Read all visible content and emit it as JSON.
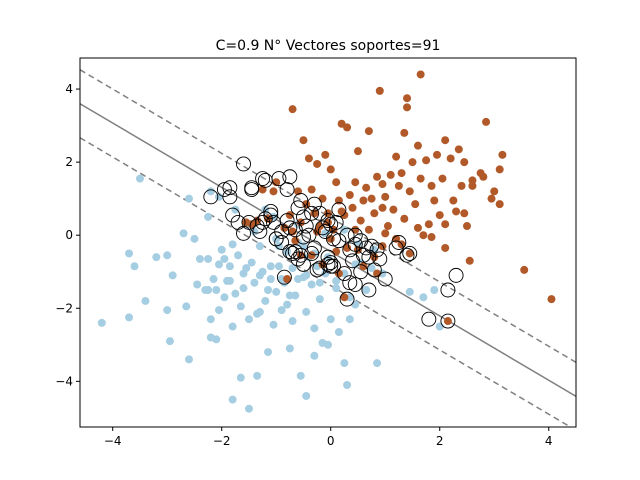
{
  "chart_data": {
    "type": "scatter",
    "title": "C=0.9   N° Vectores soportes=91",
    "xlabel": "",
    "ylabel": "",
    "xlim": [
      -4.6,
      4.5
    ],
    "ylim": [
      -5.25,
      4.85
    ],
    "xticks": [
      -4,
      -2,
      0,
      2,
      4
    ],
    "yticks": [
      -4,
      -2,
      0,
      2,
      4
    ],
    "xtick_labels": [
      "−4",
      "−2",
      "0",
      "2",
      "4"
    ],
    "ytick_labels": [
      "−4",
      "−2",
      "0",
      "2",
      "4"
    ],
    "grid": false,
    "colors": {
      "class0": "#a6cee3",
      "class1": "#b15928",
      "boundary": "#808080",
      "support_ring": "#000000"
    },
    "decision_boundary": {
      "slope": -0.88,
      "intercept": -0.45,
      "margin_offset": 0.93,
      "solid": "decision",
      "dashed": "margins"
    },
    "series": [
      {
        "class": 0,
        "points": [
          [
            -4.2,
            -2.4
          ],
          [
            -3.7,
            -2.25
          ],
          [
            -3.7,
            -0.5
          ],
          [
            -3.6,
            -0.85
          ],
          [
            -3.5,
            1.55
          ],
          [
            -3.4,
            -1.8
          ],
          [
            -3.2,
            -0.6
          ],
          [
            -3.0,
            -0.55
          ],
          [
            -3.0,
            -2.05
          ],
          [
            -2.95,
            -2.9
          ],
          [
            -2.9,
            -1.1
          ],
          [
            -2.7,
            0.05
          ],
          [
            -2.65,
            -1.95
          ],
          [
            -2.6,
            -3.4
          ],
          [
            -2.6,
            1.0
          ],
          [
            -2.5,
            -0.1
          ],
          [
            -2.4,
            -0.65
          ],
          [
            -2.3,
            -1.5
          ],
          [
            -2.25,
            0.5
          ],
          [
            -2.2,
            -2.8
          ],
          [
            -2.15,
            -1.2
          ],
          [
            -2.1,
            -1.5
          ],
          [
            -2.05,
            -0.8
          ],
          [
            -2.0,
            -0.4
          ],
          [
            -1.95,
            -1.7
          ],
          [
            -1.9,
            -1.25
          ],
          [
            -1.85,
            -0.85
          ],
          [
            -1.8,
            -2.5
          ],
          [
            -1.8,
            -0.25
          ],
          [
            -1.75,
            -1.6
          ],
          [
            -1.7,
            -0.55
          ],
          [
            -1.65,
            -3.9
          ],
          [
            -1.6,
            -1.45
          ],
          [
            -1.55,
            -0.9
          ],
          [
            -1.5,
            -2.3
          ],
          [
            -1.45,
            -0.75
          ],
          [
            -1.4,
            -1.3
          ],
          [
            -1.35,
            -3.85
          ],
          [
            -1.3,
            -2.1
          ],
          [
            -1.3,
            -0.3
          ],
          [
            -1.25,
            -1.0
          ],
          [
            -1.2,
            -1.8
          ],
          [
            -1.15,
            -3.2
          ],
          [
            -1.1,
            -0.85
          ],
          [
            -1.05,
            -2.45
          ],
          [
            -1.0,
            -1.55
          ],
          [
            -1.0,
            -0.1
          ],
          [
            -0.95,
            -0.85
          ],
          [
            -0.9,
            -2.05
          ],
          [
            -0.85,
            -1.3
          ],
          [
            -0.8,
            -0.45
          ],
          [
            -0.75,
            -3.1
          ],
          [
            -0.7,
            -2.35
          ],
          [
            -0.7,
            -0.9
          ],
          [
            -0.65,
            -1.65
          ],
          [
            -0.6,
            -0.2
          ],
          [
            -0.55,
            -3.85
          ],
          [
            -0.5,
            -1.15
          ],
          [
            -0.45,
            -2.1
          ],
          [
            -0.45,
            -4.4
          ],
          [
            -0.4,
            -0.6
          ],
          [
            -0.35,
            -1.35
          ],
          [
            -0.3,
            -3.3
          ],
          [
            -0.3,
            -2.55
          ],
          [
            -0.25,
            -0.85
          ],
          [
            -0.2,
            -1.75
          ],
          [
            -0.15,
            -2.95
          ],
          [
            -0.1,
            -1.05
          ],
          [
            -0.05,
            -3.0
          ],
          [
            0.0,
            -2.3
          ],
          [
            0.1,
            -1.45
          ],
          [
            0.15,
            -2.65
          ],
          [
            0.25,
            -3.5
          ],
          [
            0.3,
            -4.1
          ],
          [
            0.35,
            -2.3
          ],
          [
            0.45,
            -1.9
          ],
          [
            0.55,
            -0.75
          ],
          [
            0.65,
            -1.5
          ],
          [
            0.85,
            -3.5
          ],
          [
            -1.8,
            -4.5
          ],
          [
            -1.5,
            -4.75
          ],
          [
            -2.1,
            -2.85
          ],
          [
            -2.25,
            -1.5
          ],
          [
            -2.2,
            -2.3
          ],
          [
            -2.05,
            -2.05
          ],
          [
            -1.65,
            -1.95
          ],
          [
            -1.3,
            -1.1
          ],
          [
            -1.1,
            -1.2
          ],
          [
            -0.9,
            -1.2
          ],
          [
            -0.8,
            -1.9
          ],
          [
            -0.6,
            -1.2
          ],
          [
            -0.95,
            -0.3
          ],
          [
            -1.6,
            -1.05
          ],
          [
            -1.85,
            -1.25
          ],
          [
            -1.95,
            -0.65
          ],
          [
            -2.25,
            -0.65
          ],
          [
            -2.45,
            -1.35
          ],
          [
            -1.35,
            -2.15
          ],
          [
            -1.15,
            -1.5
          ],
          [
            -0.75,
            -1.65
          ],
          [
            -0.45,
            -1.1
          ],
          [
            -0.2,
            -1.3
          ],
          [
            0.1,
            -1.25
          ],
          [
            0.35,
            -1.7
          ],
          [
            0.45,
            -0.8
          ],
          [
            0.75,
            -0.9
          ],
          [
            0.95,
            -1.05
          ],
          [
            1.45,
            -1.55
          ],
          [
            1.7,
            -1.7
          ],
          [
            1.9,
            -1.5
          ],
          [
            2.0,
            -2.5
          ],
          [
            0.25,
            -1.05
          ],
          [
            -0.3,
            -0.5
          ],
          [
            -0.05,
            -0.6
          ],
          [
            -0.6,
            0.3
          ],
          [
            -1.05,
            0.5
          ],
          [
            -1.5,
            0.3
          ],
          [
            -2.05,
            1.05
          ],
          [
            -2.2,
            1.2
          ],
          [
            -1.75,
            0.7
          ],
          [
            -1.4,
            0.1
          ],
          [
            -1.2,
            0.7
          ],
          [
            -0.85,
            0.2
          ],
          [
            -0.5,
            -0.3
          ],
          [
            -0.1,
            0.05
          ],
          [
            0.25,
            0.15
          ],
          [
            0.5,
            -0.25
          ],
          [
            0.8,
            -0.4
          ]
        ]
      },
      {
        "class": 1,
        "points": [
          [
            4.05,
            -1.75
          ],
          [
            3.55,
            -0.95
          ],
          [
            3.1,
            0.85
          ],
          [
            3.1,
            1.8
          ],
          [
            3.15,
            2.2
          ],
          [
            3.0,
            1.2
          ],
          [
            2.85,
            3.1
          ],
          [
            2.8,
            1.6
          ],
          [
            2.75,
            1.7
          ],
          [
            2.6,
            1.35
          ],
          [
            2.6,
            1.5
          ],
          [
            2.55,
            -0.7
          ],
          [
            2.45,
            0.6
          ],
          [
            2.4,
            1.35
          ],
          [
            2.35,
            2.35
          ],
          [
            2.25,
            0.95
          ],
          [
            2.1,
            2.6
          ],
          [
            2.1,
            -0.35
          ],
          [
            2.05,
            1.55
          ],
          [
            2.0,
            0.55
          ],
          [
            1.95,
            2.2
          ],
          [
            1.9,
            0.95
          ],
          [
            1.85,
            1.35
          ],
          [
            1.8,
            0.3
          ],
          [
            1.75,
            2.05
          ],
          [
            1.7,
            0.0
          ],
          [
            1.65,
            1.55
          ],
          [
            1.6,
            2.45
          ],
          [
            1.55,
            0.85
          ],
          [
            1.5,
            2.0
          ],
          [
            1.45,
            1.2
          ],
          [
            1.4,
            3.5
          ],
          [
            1.4,
            3.75
          ],
          [
            1.35,
            2.8
          ],
          [
            1.35,
            0.45
          ],
          [
            1.3,
            1.7
          ],
          [
            1.25,
            1.35
          ],
          [
            1.2,
            2.15
          ],
          [
            1.15,
            0.7
          ],
          [
            1.1,
            1.65
          ],
          [
            1.05,
            0.25
          ],
          [
            1.0,
            1.05
          ],
          [
            0.95,
            1.4
          ],
          [
            0.9,
            3.95
          ],
          [
            0.85,
            1.6
          ],
          [
            0.8,
            0.6
          ],
          [
            0.75,
            1.0
          ],
          [
            0.7,
            2.85
          ],
          [
            0.65,
            1.3
          ],
          [
            0.6,
            0.95
          ],
          [
            0.55,
            0.4
          ],
          [
            0.5,
            2.3
          ],
          [
            0.45,
            1.45
          ],
          [
            0.4,
            0.75
          ],
          [
            0.35,
            1.1
          ],
          [
            0.3,
            2.95
          ],
          [
            0.25,
            0.55
          ],
          [
            0.2,
            3.05
          ],
          [
            0.15,
            0.95
          ],
          [
            0.1,
            1.45
          ],
          [
            0.05,
            0.15
          ],
          [
            0.0,
            1.8
          ],
          [
            -0.05,
            0.6
          ],
          [
            -0.1,
            2.2
          ],
          [
            -0.15,
            1.0
          ],
          [
            -0.2,
            0.25
          ],
          [
            -0.25,
            1.95
          ],
          [
            -0.3,
            0.6
          ],
          [
            -0.35,
            1.25
          ],
          [
            -0.4,
            2.1
          ],
          [
            -0.45,
            0.85
          ],
          [
            -0.5,
            2.6
          ],
          [
            -0.55,
            0.35
          ],
          [
            -0.6,
            1.2
          ],
          [
            -0.65,
            -0.15
          ],
          [
            -0.7,
            3.45
          ],
          [
            -0.75,
            0.55
          ],
          [
            -0.8,
            -1.2
          ],
          [
            -0.85,
            0.2
          ],
          [
            -1.0,
            1.45
          ],
          [
            -1.05,
            1.2
          ],
          [
            -1.15,
            0.45
          ],
          [
            -1.25,
            1.25
          ],
          [
            -1.35,
            0.4
          ],
          [
            -1.45,
            0.3
          ],
          [
            -1.55,
            0.35
          ],
          [
            1.65,
            4.4
          ],
          [
            2.3,
            0.65
          ],
          [
            2.2,
            2.1
          ],
          [
            2.45,
            2.0
          ],
          [
            2.95,
            1.0
          ],
          [
            0.8,
            -0.6
          ],
          [
            0.95,
            -0.3
          ],
          [
            1.3,
            -0.25
          ],
          [
            1.45,
            -0.5
          ],
          [
            2.15,
            -2.35
          ],
          [
            0.25,
            -1.7
          ],
          [
            0.5,
            -0.4
          ],
          [
            0.6,
            -0.85
          ],
          [
            0.85,
            -1.05
          ],
          [
            0.3,
            -0.35
          ],
          [
            0.0,
            -0.1
          ],
          [
            -0.15,
            -0.8
          ],
          [
            -0.35,
            -0.55
          ],
          [
            -0.55,
            -0.55
          ],
          [
            0.1,
            -0.45
          ],
          [
            0.15,
            -1.05
          ],
          [
            0.45,
            0.15
          ],
          [
            -0.05,
            0.35
          ],
          [
            -0.25,
            0.1
          ],
          [
            -0.7,
            0.1
          ],
          [
            0.7,
            0.15
          ],
          [
            1.0,
            0.05
          ],
          [
            1.2,
            -0.1
          ],
          [
            1.6,
            0.2
          ],
          [
            1.85,
            -0.05
          ],
          [
            2.1,
            0.3
          ],
          [
            2.5,
            0.25
          ],
          [
            0.95,
            0.75
          ],
          [
            0.2,
            0.65
          ]
        ]
      }
    ],
    "support_vectors": [
      [
        -1.6,
        1.95
      ],
      [
        -1.25,
        1.55
      ],
      [
        -1.85,
        1.3
      ],
      [
        -1.95,
        1.25
      ],
      [
        -2.2,
        1.05
      ],
      [
        -1.85,
        1.05
      ],
      [
        -1.8,
        0.55
      ],
      [
        -1.5,
        0.35
      ],
      [
        -1.45,
        1.25
      ],
      [
        -1.2,
        1.5
      ],
      [
        -0.75,
        1.6
      ],
      [
        -1.1,
        0.65
      ],
      [
        -1.2,
        0.45
      ],
      [
        -1.0,
        -0.1
      ],
      [
        -0.8,
        0.4
      ],
      [
        -0.75,
        0.2
      ],
      [
        -0.7,
        -0.5
      ],
      [
        -0.6,
        0.75
      ],
      [
        -0.5,
        0.5
      ],
      [
        -0.45,
        0.25
      ],
      [
        -0.4,
        0.0
      ],
      [
        -0.35,
        -0.5
      ],
      [
        -0.55,
        -0.55
      ],
      [
        -0.65,
        -0.45
      ],
      [
        -0.2,
        0.6
      ],
      [
        -0.1,
        0.1
      ],
      [
        -0.05,
        0.4
      ],
      [
        0.0,
        0.3
      ],
      [
        0.05,
        -0.1
      ],
      [
        -0.05,
        -0.6
      ],
      [
        -0.2,
        -0.9
      ],
      [
        0.15,
        0.7
      ],
      [
        0.3,
        0.0
      ],
      [
        0.35,
        -0.4
      ],
      [
        0.45,
        -0.25
      ],
      [
        0.55,
        -0.15
      ],
      [
        0.65,
        -0.35
      ],
      [
        0.7,
        -0.6
      ],
      [
        0.8,
        -0.95
      ],
      [
        0.85,
        -0.4
      ],
      [
        0.9,
        -0.65
      ],
      [
        1.0,
        -1.2
      ],
      [
        0.55,
        -1.0
      ],
      [
        0.45,
        -1.35
      ],
      [
        0.3,
        -1.75
      ],
      [
        0.7,
        -1.5
      ],
      [
        0.35,
        -1.3
      ],
      [
        0.05,
        -0.85
      ],
      [
        -0.05,
        -0.8
      ],
      [
        -0.25,
        -0.95
      ],
      [
        -0.5,
        -0.8
      ],
      [
        -0.6,
        -0.65
      ],
      [
        -0.75,
        -0.45
      ],
      [
        -0.85,
        -1.15
      ],
      [
        -1.0,
        -0.1
      ],
      [
        -1.35,
        0.25
      ],
      [
        -1.05,
        0.35
      ],
      [
        -0.9,
        0.1
      ],
      [
        -1.25,
        0.35
      ],
      [
        1.4,
        -0.55
      ],
      [
        1.2,
        -0.35
      ],
      [
        2.15,
        -1.5
      ],
      [
        2.3,
        -1.1
      ],
      [
        2.15,
        -2.35
      ],
      [
        1.8,
        -2.3
      ],
      [
        -0.65,
        0.15
      ],
      [
        -0.35,
        0.6
      ],
      [
        0.1,
        0.35
      ],
      [
        0.25,
        -1.05
      ],
      [
        0.0,
        -0.75
      ],
      [
        -0.15,
        0.2
      ],
      [
        0.6,
        -0.55
      ],
      [
        1.25,
        -0.2
      ],
      [
        0.45,
        0.0
      ],
      [
        -0.5,
        -0.05
      ],
      [
        -0.9,
        -0.2
      ],
      [
        0.0,
        -0.85
      ],
      [
        -0.3,
        -0.35
      ],
      [
        0.4,
        -0.7
      ],
      [
        -0.55,
        0.95
      ],
      [
        -0.95,
        1.55
      ],
      [
        -1.6,
        0.05
      ],
      [
        -1.3,
        0.1
      ],
      [
        -1.7,
        0.35
      ],
      [
        -0.8,
        1.25
      ],
      [
        -0.3,
        0.85
      ],
      [
        0.15,
        -0.15
      ],
      [
        0.75,
        -0.3
      ],
      [
        -1.1,
        0.55
      ],
      [
        -1.45,
        1.3
      ],
      [
        1.45,
        -0.5
      ]
    ]
  }
}
